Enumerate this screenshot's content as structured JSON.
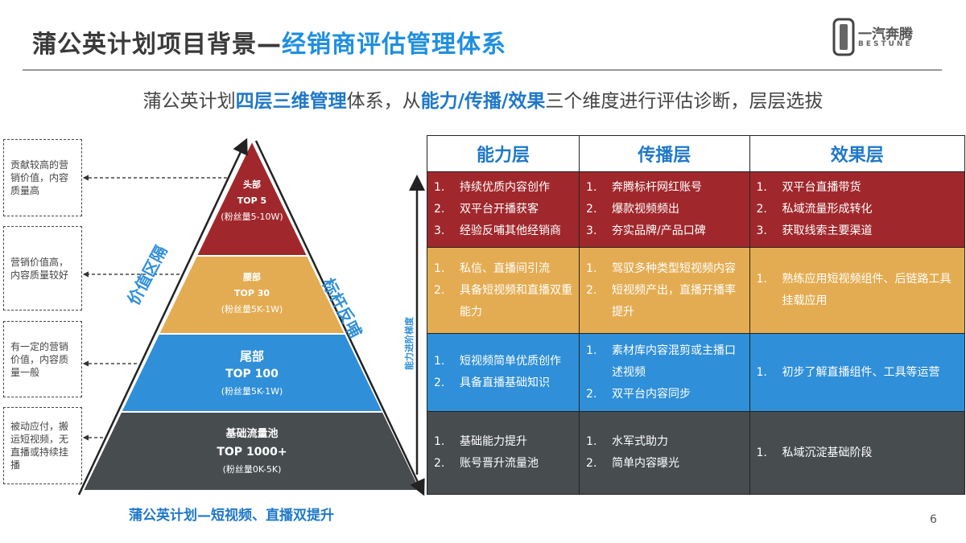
{
  "header": {
    "title_a": "蒲公英计划项目背景—",
    "title_b": "经销商评估管理体系",
    "logo": {
      "cn": "一汽奔腾",
      "en": "BESTUNE"
    }
  },
  "subtitle": {
    "p1": "蒲公英计划",
    "b1": "四层三维管理",
    "p2": "体系，从",
    "b2": "能力/传播/效果",
    "p3": "三个维度进行评估诊断，层层选拔"
  },
  "notes": [
    "贡献较高的营销价值，内容质量高",
    "营销价值高，内容质量较好",
    "有一定的营销价值，内容质量一般",
    "被动应付，搬运短视频，无直播或持续挂播"
  ],
  "pyramid": {
    "layers": [
      {
        "name": "头部",
        "top": "TOP 5",
        "fans": "(粉丝量5-10W)",
        "color": "#a0282c"
      },
      {
        "name": "腰部",
        "top": "TOP 30",
        "fans": "(粉丝量5K-1W)",
        "color": "#e4ac52"
      },
      {
        "name": "尾部",
        "top": "TOP 100",
        "fans": "(粉丝量5K-1W)",
        "color": "#2f8fd8"
      },
      {
        "name": "基础流量池",
        "top": "TOP 1000+",
        "fans": "(粉丝量0K-5K)",
        "color": "#474c4f"
      }
    ],
    "left_label": "价值区隔",
    "right_label": "标杆反哺",
    "axis_label": "能力进阶梯度",
    "caption": "蒲公英计划—短视频、直播双提升"
  },
  "table": {
    "headers": [
      "能力层",
      "传播层",
      "效果层"
    ],
    "rows": [
      {
        "color": "#a0282c",
        "cells": [
          [
            "持续优质内容创作",
            "双平台开播获客",
            "经验反哺其他经销商"
          ],
          [
            "奔腾标杆网红账号",
            "爆款视频频出",
            "夯实品牌/产品口碑"
          ],
          [
            "双平台直播带货",
            "私域流量形成转化",
            "获取线索主要渠道"
          ]
        ]
      },
      {
        "color": "#e4ac52",
        "cells": [
          [
            "私信、直播间引流",
            "具备短视频和直播双重能力"
          ],
          [
            "驾驭多种类型短视频内容",
            "短视频产出，直播开播率提升"
          ],
          [
            "熟练应用短视频组件、后链路工具挂载应用"
          ]
        ]
      },
      {
        "color": "#2f8fd8",
        "cells": [
          [
            "短视频简单优质创作",
            "具备直播基础知识"
          ],
          [
            "素材库内容混剪或主播口述视频",
            "双平台内容同步"
          ],
          [
            "初步了解直播组件、工具等运营"
          ]
        ]
      },
      {
        "color": "#474c4f",
        "cells": [
          [
            "基础能力提升",
            "账号晋升流量池"
          ],
          [
            "水军式助力",
            "简单内容曝光"
          ],
          [
            "私域沉淀基础阶段"
          ]
        ]
      }
    ]
  },
  "page_number": "6"
}
